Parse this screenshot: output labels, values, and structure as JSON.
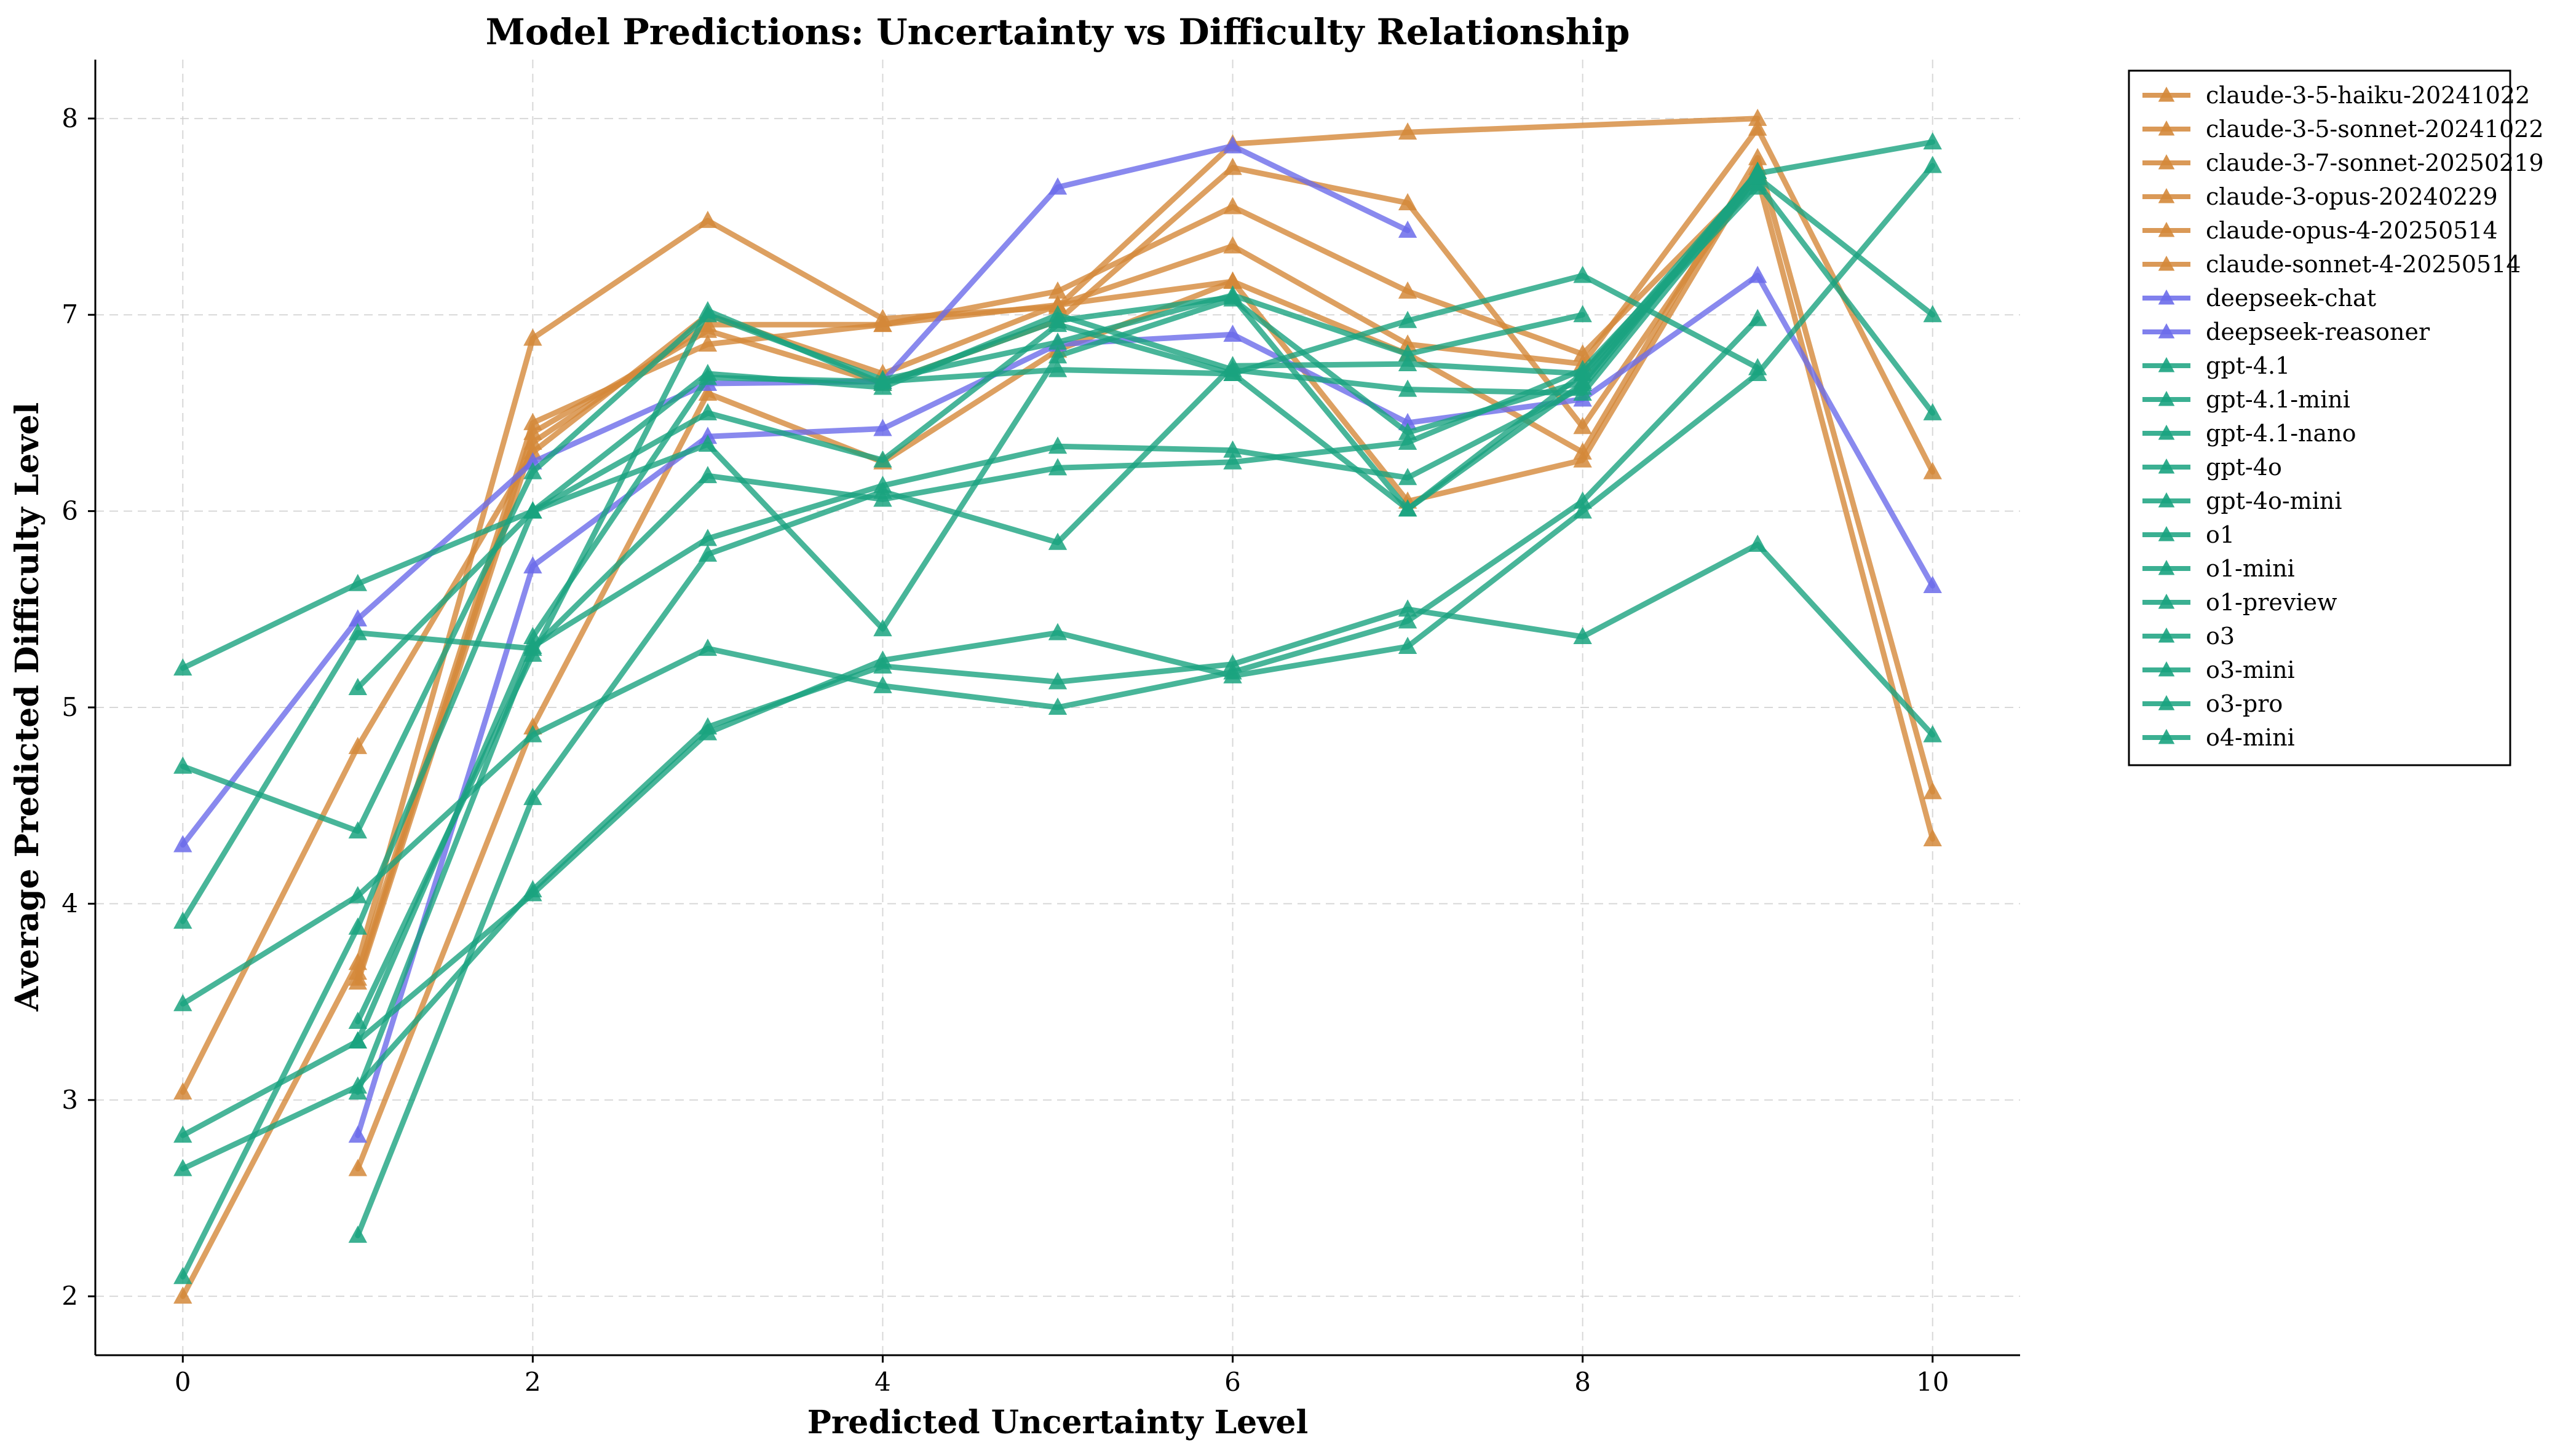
{
  "chart_data": {
    "type": "line",
    "title": "Model Predictions: Uncertainty vs Difficulty Relationship",
    "xlabel": "Predicted Uncertainty Level",
    "ylabel": "Average Predicted Difficulty Level",
    "xlim": [
      -0.5,
      10.5
    ],
    "ylim": [
      1.7,
      8.3
    ],
    "xticks": [
      0,
      2,
      4,
      6,
      8,
      10
    ],
    "yticks": [
      2,
      3,
      4,
      5,
      6,
      7,
      8
    ],
    "grid": true,
    "marker": "triangle",
    "legend_position": "outside-right",
    "colors": {
      "claude": "#d4883a",
      "deepseek": "#6b6bea",
      "openai": "#1aa37f"
    },
    "series": [
      {
        "name": "claude-3-5-haiku-20241022",
        "color": "#d4883a",
        "x": [
          0,
          1,
          2,
          3,
          4,
          5,
          6,
          7,
          8,
          9,
          10
        ],
        "y": [
          3.04,
          4.8,
          6.3,
          7.0,
          6.7,
          7.05,
          7.17,
          6.8,
          6.3,
          7.8,
          4.57
        ]
      },
      {
        "name": "claude-3-5-sonnet-20241022",
        "color": "#d4883a",
        "x": [
          1,
          2,
          3,
          4,
          5,
          6,
          7,
          8,
          9,
          10
        ],
        "y": [
          3.65,
          6.45,
          6.85,
          6.95,
          7.05,
          7.35,
          6.85,
          6.75,
          7.95,
          6.2
        ]
      },
      {
        "name": "claude-3-7-sonnet-20250219",
        "color": "#d4883a",
        "x": [
          1,
          2,
          3,
          4,
          5,
          6,
          7,
          8,
          9,
          10
        ],
        "y": [
          3.6,
          6.35,
          6.95,
          6.95,
          7.12,
          7.55,
          7.12,
          6.8,
          7.7,
          4.33
        ]
      },
      {
        "name": "claude-3-opus-20240229",
        "color": "#d4883a",
        "x": [
          1,
          2,
          3,
          4,
          5,
          6,
          7,
          8,
          9
        ],
        "y": [
          2.65,
          4.9,
          6.6,
          6.25,
          6.82,
          7.17,
          6.05,
          6.26,
          7.75
        ]
      },
      {
        "name": "claude-opus-4-20250514",
        "color": "#d4883a",
        "x": [
          0,
          1,
          2,
          3,
          4,
          5,
          6,
          7,
          9
        ],
        "y": [
          2.0,
          3.7,
          6.88,
          7.48,
          6.98,
          7.04,
          7.87,
          7.93,
          8.0
        ]
      },
      {
        "name": "claude-sonnet-4-20250514",
        "color": "#d4883a",
        "x": [
          1,
          2,
          3,
          4,
          5,
          6,
          7,
          8,
          9
        ],
        "y": [
          3.62,
          6.4,
          6.92,
          6.65,
          6.97,
          7.75,
          7.57,
          6.43,
          7.72
        ]
      },
      {
        "name": "deepseek-chat",
        "color": "#6b6bea",
        "x": [
          0,
          1,
          2,
          3,
          4,
          5,
          6,
          7
        ],
        "y": [
          4.3,
          5.45,
          6.25,
          6.65,
          6.66,
          7.65,
          7.86,
          7.43
        ]
      },
      {
        "name": "deepseek-reasoner",
        "color": "#6b6bea",
        "x": [
          1,
          2,
          3,
          4,
          5,
          6,
          7,
          8,
          9,
          10
        ],
        "y": [
          2.82,
          5.72,
          6.38,
          6.42,
          6.85,
          6.9,
          6.45,
          6.57,
          7.2,
          5.62
        ]
      },
      {
        "name": "gpt-4.1",
        "color": "#1aa37f",
        "x": [
          0,
          1,
          2,
          3,
          4,
          5,
          6,
          7,
          8,
          9,
          10
        ],
        "y": [
          5.2,
          5.63,
          6.0,
          6.7,
          6.63,
          7.0,
          6.72,
          6.62,
          6.6,
          7.7,
          7.0
        ]
      },
      {
        "name": "gpt-4.1-mini",
        "color": "#1aa37f",
        "x": [
          0,
          1,
          2,
          3,
          4,
          5,
          6,
          7,
          8
        ],
        "y": [
          4.7,
          4.37,
          6.2,
          7.0,
          6.67,
          6.86,
          7.1,
          6.8,
          7.0
        ]
      },
      {
        "name": "gpt-4.1-nano",
        "color": "#1aa37f",
        "x": [
          0,
          1,
          2,
          3,
          4,
          5,
          6,
          7,
          8,
          9
        ],
        "y": [
          3.49,
          4.04,
          4.86,
          5.3,
          5.11,
          5.0,
          5.18,
          5.44,
          6.05,
          6.98
        ]
      },
      {
        "name": "gpt-4o",
        "color": "#1aa37f",
        "x": [
          0,
          1,
          2,
          3,
          4,
          5,
          6,
          7,
          8,
          9,
          10
        ],
        "y": [
          2.65,
          3.07,
          4.07,
          4.9,
          5.21,
          5.13,
          5.22,
          5.5,
          5.36,
          5.83,
          4.86
        ]
      },
      {
        "name": "gpt-4o-mini",
        "color": "#1aa37f",
        "x": [
          0,
          1,
          2,
          3,
          4,
          5,
          6,
          7,
          8,
          9,
          10
        ],
        "y": [
          2.82,
          3.3,
          4.05,
          4.87,
          5.24,
          5.38,
          5.16,
          5.31,
          6.0,
          6.7,
          7.76
        ]
      },
      {
        "name": "o1",
        "color": "#1aa37f",
        "x": [
          0,
          1,
          2,
          3,
          4,
          5,
          6,
          7,
          8,
          9
        ],
        "y": [
          2.1,
          3.88,
          6.0,
          6.5,
          6.26,
          6.95,
          6.7,
          6.97,
          7.2,
          6.73
        ]
      },
      {
        "name": "o1-mini",
        "color": "#1aa37f",
        "x": [
          1,
          2,
          3,
          4,
          5,
          6,
          7,
          8,
          9
        ],
        "y": [
          3.3,
          5.36,
          6.68,
          6.66,
          6.72,
          6.7,
          6.01,
          6.7,
          7.65
        ]
      },
      {
        "name": "o1-preview",
        "color": "#1aa37f",
        "x": [
          1,
          2,
          3,
          4,
          5,
          6,
          7,
          8,
          9
        ],
        "y": [
          3.04,
          5.31,
          5.86,
          6.13,
          6.33,
          6.31,
          6.17,
          6.63,
          7.73
        ]
      },
      {
        "name": "o3",
        "color": "#1aa37f",
        "x": [
          0,
          1,
          2,
          3,
          4,
          5,
          6,
          7,
          8,
          9,
          10
        ],
        "y": [
          3.91,
          5.38,
          5.3,
          6.18,
          6.06,
          6.22,
          6.25,
          6.35,
          6.72,
          7.67,
          6.5
        ]
      },
      {
        "name": "o3-mini",
        "color": "#1aa37f",
        "x": [
          1,
          2,
          3,
          4,
          5,
          6,
          7,
          8,
          9,
          10
        ],
        "y": [
          2.31,
          4.54,
          5.78,
          6.1,
          5.84,
          6.74,
          6.75,
          6.7,
          7.72,
          7.88
        ]
      },
      {
        "name": "o3-pro",
        "color": "#1aa37f",
        "x": [
          1,
          2,
          3,
          4,
          5,
          6,
          7,
          8,
          9
        ],
        "y": [
          5.1,
          6.0,
          6.34,
          5.4,
          6.79,
          7.08,
          6.4,
          6.66,
          7.7
        ]
      },
      {
        "name": "o4-mini",
        "color": "#1aa37f",
        "x": [
          1,
          2,
          3,
          4,
          5,
          6,
          7,
          8,
          9
        ],
        "y": [
          3.4,
          5.27,
          7.02,
          6.65,
          6.97,
          7.09,
          6.01,
          6.65,
          7.73
        ]
      }
    ]
  }
}
